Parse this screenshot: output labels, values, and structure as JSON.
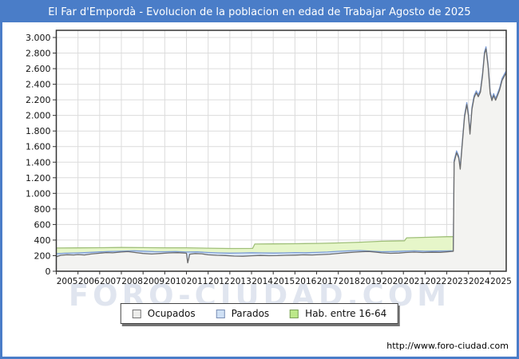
{
  "header": {
    "title": "El Far d'Empordà - Evolucion de la poblacion en edad de Trabajar Agosto de 2025"
  },
  "footer": {
    "url": "http://www.foro-ciudad.com"
  },
  "watermark": "FORO-CIUDAD.COM",
  "colors": {
    "frame": "#4a7dc8",
    "grid": "#dcdcdc",
    "axis": "#333333",
    "tick_text": "#111111",
    "watermark": "#c7d1e3"
  },
  "legend": {
    "items": [
      {
        "label": "Ocupados",
        "fill": "#ededeb",
        "border": "#777777"
      },
      {
        "label": "Parados",
        "fill": "#cfe0f4",
        "border": "#7a8fb5"
      },
      {
        "label": "Hab. entre 16-64",
        "fill": "#bce88a",
        "border": "#7ba05a"
      }
    ]
  },
  "chart_data": {
    "type": "area",
    "title": "El Far d'Empordà - Evolucion de la poblacion en edad de Trabajar Agosto de 2025",
    "xlabel": "",
    "ylabel": "",
    "x_range": [
      2005,
      2025.74
    ],
    "ylim": [
      0,
      3000
    ],
    "y_tick_step": 200,
    "grid": true,
    "legend_position": "bottom",
    "y_tick_labels": [
      "0",
      "200",
      "400",
      "600",
      "800",
      "1.000",
      "1.200",
      "1.400",
      "1.600",
      "1.800",
      "2.000",
      "2.200",
      "2.400",
      "2.600",
      "2.800",
      "3.000"
    ],
    "x_tick_labels": [
      "2005",
      "2006",
      "2007",
      "2008",
      "2009",
      "2010",
      "2011",
      "2012",
      "2013",
      "2014",
      "2015",
      "2016",
      "2017",
      "2018",
      "2019",
      "2020",
      "2021",
      "2022",
      "2023",
      "2024",
      "2025"
    ],
    "series": [
      {
        "name": "Hab. entre 16-64",
        "fill": "#e6f6c9",
        "stroke": "#9fbf78",
        "points": [
          [
            2005.0,
            298
          ],
          [
            2006.0,
            300
          ],
          [
            2007.0,
            302
          ],
          [
            2008.0,
            305
          ],
          [
            2009.0,
            303
          ],
          [
            2010.0,
            301
          ],
          [
            2011.0,
            301
          ],
          [
            2012.0,
            296
          ],
          [
            2013.0,
            292
          ],
          [
            2014.05,
            293
          ],
          [
            2014.15,
            349
          ],
          [
            2015.0,
            351
          ],
          [
            2016.0,
            353
          ],
          [
            2017.0,
            357
          ],
          [
            2018.0,
            363
          ],
          [
            2019.0,
            373
          ],
          [
            2020.0,
            385
          ],
          [
            2021.05,
            391
          ],
          [
            2021.15,
            429
          ],
          [
            2022.0,
            435
          ],
          [
            2023.0,
            443
          ],
          [
            2025.72,
            446
          ]
        ]
      },
      {
        "name": "Parados",
        "fill": "#d9e7f8",
        "stroke": "#7b9cd6",
        "points": [
          [
            2005.0,
            225
          ],
          [
            2005.4,
            231
          ],
          [
            2005.8,
            234
          ],
          [
            2006.2,
            238
          ],
          [
            2006.6,
            243
          ],
          [
            2007.0,
            249
          ],
          [
            2007.4,
            253
          ],
          [
            2007.8,
            256
          ],
          [
            2008.2,
            260
          ],
          [
            2008.6,
            262
          ],
          [
            2009.0,
            258
          ],
          [
            2009.5,
            252
          ],
          [
            2010.0,
            251
          ],
          [
            2010.5,
            253
          ],
          [
            2011.0,
            247
          ],
          [
            2011.5,
            249
          ],
          [
            2012.0,
            241
          ],
          [
            2012.5,
            236
          ],
          [
            2013.0,
            232
          ],
          [
            2013.5,
            234
          ],
          [
            2014.0,
            238
          ],
          [
            2014.5,
            236
          ],
          [
            2015.0,
            233
          ],
          [
            2015.5,
            236
          ],
          [
            2016.0,
            240
          ],
          [
            2016.5,
            238
          ],
          [
            2017.0,
            242
          ],
          [
            2017.5,
            247
          ],
          [
            2018.0,
            256
          ],
          [
            2018.5,
            262
          ],
          [
            2019.0,
            266
          ],
          [
            2019.5,
            258
          ],
          [
            2020.0,
            251
          ],
          [
            2020.5,
            253
          ],
          [
            2021.0,
            258
          ],
          [
            2021.5,
            262
          ],
          [
            2022.0,
            257
          ],
          [
            2022.5,
            259
          ],
          [
            2023.0,
            261
          ],
          [
            2023.3,
            263
          ],
          [
            2023.34,
            1425
          ],
          [
            2023.45,
            1545
          ],
          [
            2023.55,
            1480
          ],
          [
            2023.62,
            1335
          ],
          [
            2023.72,
            1675
          ],
          [
            2023.82,
            2005
          ],
          [
            2023.92,
            2165
          ],
          [
            2024.0,
            2020
          ],
          [
            2024.07,
            1785
          ],
          [
            2024.16,
            2105
          ],
          [
            2024.26,
            2255
          ],
          [
            2024.36,
            2315
          ],
          [
            2024.45,
            2265
          ],
          [
            2024.55,
            2325
          ],
          [
            2024.65,
            2545
          ],
          [
            2024.74,
            2815
          ],
          [
            2024.81,
            2880
          ],
          [
            2024.9,
            2665
          ],
          [
            2025.0,
            2305
          ],
          [
            2025.08,
            2215
          ],
          [
            2025.16,
            2280
          ],
          [
            2025.25,
            2220
          ],
          [
            2025.34,
            2280
          ],
          [
            2025.44,
            2355
          ],
          [
            2025.55,
            2475
          ],
          [
            2025.72,
            2565
          ]
        ]
      },
      {
        "name": "Ocupados",
        "fill": "#f3f3f1",
        "stroke": "#6b6b6b",
        "points": [
          [
            2005.0,
            185
          ],
          [
            2005.2,
            205
          ],
          [
            2005.5,
            212
          ],
          [
            2005.8,
            209
          ],
          [
            2006.0,
            214
          ],
          [
            2006.3,
            209
          ],
          [
            2006.6,
            221
          ],
          [
            2007.0,
            231
          ],
          [
            2007.3,
            240
          ],
          [
            2007.6,
            237
          ],
          [
            2008.0,
            247
          ],
          [
            2008.3,
            252
          ],
          [
            2008.6,
            242
          ],
          [
            2009.0,
            228
          ],
          [
            2009.4,
            221
          ],
          [
            2009.8,
            228
          ],
          [
            2010.2,
            236
          ],
          [
            2010.6,
            239
          ],
          [
            2011.0,
            231
          ],
          [
            2011.06,
            108
          ],
          [
            2011.15,
            219
          ],
          [
            2011.4,
            227
          ],
          [
            2011.7,
            224
          ],
          [
            2012.0,
            211
          ],
          [
            2012.4,
            205
          ],
          [
            2012.8,
            202
          ],
          [
            2013.2,
            195
          ],
          [
            2013.6,
            193
          ],
          [
            2014.0,
            199
          ],
          [
            2014.4,
            203
          ],
          [
            2014.8,
            200
          ],
          [
            2015.2,
            201
          ],
          [
            2015.6,
            205
          ],
          [
            2016.0,
            207
          ],
          [
            2016.4,
            211
          ],
          [
            2016.8,
            209
          ],
          [
            2017.2,
            214
          ],
          [
            2017.6,
            219
          ],
          [
            2018.0,
            229
          ],
          [
            2018.4,
            239
          ],
          [
            2018.8,
            246
          ],
          [
            2019.1,
            251
          ],
          [
            2019.4,
            254
          ],
          [
            2019.7,
            246
          ],
          [
            2020.0,
            237
          ],
          [
            2020.4,
            230
          ],
          [
            2020.8,
            233
          ],
          [
            2021.1,
            241
          ],
          [
            2021.5,
            246
          ],
          [
            2021.9,
            241
          ],
          [
            2022.3,
            244
          ],
          [
            2022.7,
            243
          ],
          [
            2023.0,
            249
          ],
          [
            2023.3,
            256
          ],
          [
            2023.34,
            1400
          ],
          [
            2023.45,
            1520
          ],
          [
            2023.55,
            1455
          ],
          [
            2023.62,
            1310
          ],
          [
            2023.72,
            1650
          ],
          [
            2023.82,
            1980
          ],
          [
            2023.92,
            2140
          ],
          [
            2024.0,
            1995
          ],
          [
            2024.07,
            1760
          ],
          [
            2024.16,
            2080
          ],
          [
            2024.26,
            2230
          ],
          [
            2024.36,
            2290
          ],
          [
            2024.45,
            2240
          ],
          [
            2024.55,
            2300
          ],
          [
            2024.65,
            2520
          ],
          [
            2024.74,
            2790
          ],
          [
            2024.81,
            2855
          ],
          [
            2024.9,
            2640
          ],
          [
            2025.0,
            2280
          ],
          [
            2025.08,
            2190
          ],
          [
            2025.16,
            2255
          ],
          [
            2025.25,
            2195
          ],
          [
            2025.34,
            2255
          ],
          [
            2025.44,
            2330
          ],
          [
            2025.55,
            2450
          ],
          [
            2025.72,
            2540
          ]
        ]
      }
    ]
  }
}
